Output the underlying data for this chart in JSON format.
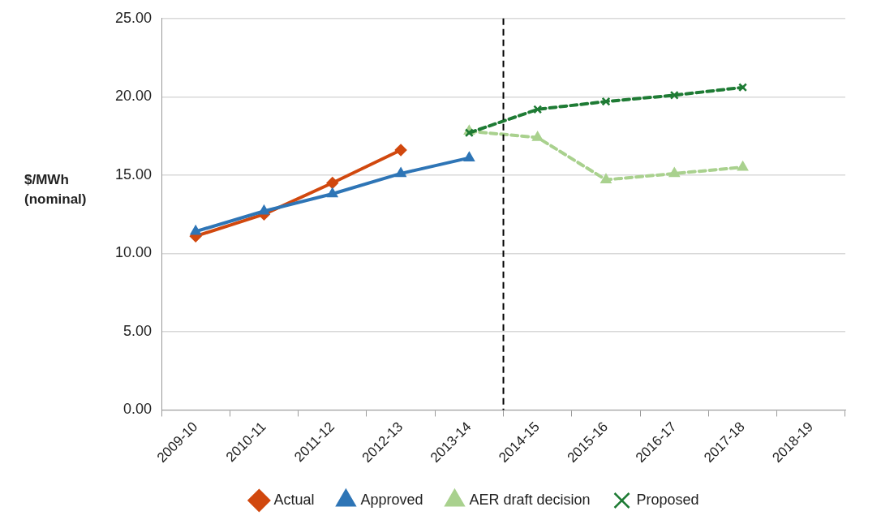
{
  "chart_data": {
    "type": "line",
    "ylabel": "$/MWh (nominal)",
    "categories": [
      "2009-10",
      "2010-11",
      "2011-12",
      "2012-13",
      "2013-14",
      "2014-15",
      "2015-16",
      "2016-17",
      "2017-18",
      "2018-19"
    ],
    "series": [
      {
        "name": "Actual",
        "color": "#d1480e",
        "marker": "diamond",
        "line_style": "solid",
        "values": [
          11.1,
          12.5,
          14.5,
          16.6,
          null,
          null,
          null,
          null,
          null,
          null
        ]
      },
      {
        "name": "Approved",
        "color": "#2e75b6",
        "marker": "triangle",
        "line_style": "solid",
        "values": [
          11.4,
          12.7,
          13.8,
          15.1,
          16.1,
          null,
          null,
          null,
          null,
          null
        ]
      },
      {
        "name": "AER draft decision",
        "color": "#a9d18e",
        "marker": "triangle",
        "line_style": "dashed",
        "values": [
          null,
          null,
          null,
          null,
          17.8,
          17.4,
          14.7,
          15.1,
          15.5,
          null
        ]
      },
      {
        "name": "Proposed",
        "color": "#1e7b34",
        "marker": "cross",
        "line_style": "dashed",
        "values": [
          null,
          null,
          null,
          null,
          17.7,
          19.2,
          19.7,
          20.1,
          20.6,
          null
        ]
      }
    ],
    "ylim": [
      0,
      25
    ],
    "yticks": [
      {
        "value": 0,
        "label": "0.00"
      },
      {
        "value": 5,
        "label": "5.00"
      },
      {
        "value": 10,
        "label": "10.00"
      },
      {
        "value": 15,
        "label": "15.00"
      },
      {
        "value": 20,
        "label": "20.00"
      },
      {
        "value": 25,
        "label": "25.00"
      }
    ],
    "ref_lines": [
      {
        "axis": "x",
        "value": "2014-15",
        "line_style": "dashed",
        "color": "#000000"
      }
    ],
    "grid": "y",
    "legend": "bottom"
  }
}
